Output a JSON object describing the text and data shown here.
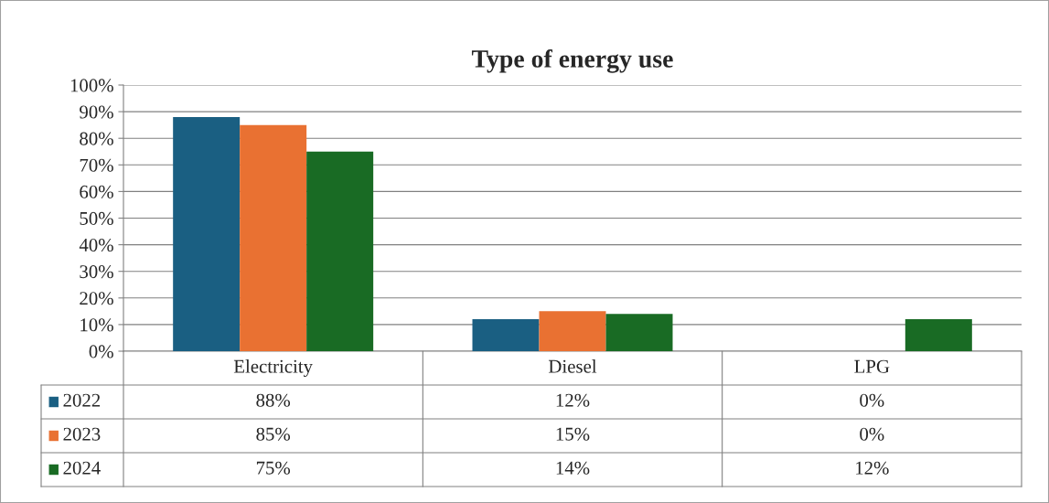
{
  "chart_data": {
    "type": "bar",
    "title": "Type of energy use",
    "categories": [
      "Electricity",
      "Diesel",
      "LPG"
    ],
    "series": [
      {
        "name": "2022",
        "color": "#1a5f82",
        "values": [
          88,
          12,
          0
        ],
        "value_labels": [
          "88%",
          "12%",
          "0%"
        ]
      },
      {
        "name": "2023",
        "color": "#e97132",
        "values": [
          85,
          15,
          0
        ],
        "value_labels": [
          "85%",
          "15%",
          "0%"
        ]
      },
      {
        "name": "2024",
        "color": "#196b24",
        "values": [
          75,
          14,
          12
        ],
        "value_labels": [
          "75%",
          "14%",
          "12%"
        ]
      }
    ],
    "ylim": [
      0,
      100
    ],
    "yticks": [
      {
        "value": 0,
        "label": "0%"
      },
      {
        "value": 10,
        "label": "10%"
      },
      {
        "value": 20,
        "label": "20%"
      },
      {
        "value": 30,
        "label": "30%"
      },
      {
        "value": 40,
        "label": "40%"
      },
      {
        "value": 50,
        "label": "50%"
      },
      {
        "value": 60,
        "label": "60%"
      },
      {
        "value": 70,
        "label": "70%"
      },
      {
        "value": 80,
        "label": "80%"
      },
      {
        "value": 90,
        "label": "90%"
      },
      {
        "value": 100,
        "label": "100%"
      }
    ],
    "grid": "y",
    "legend": "bottom"
  }
}
